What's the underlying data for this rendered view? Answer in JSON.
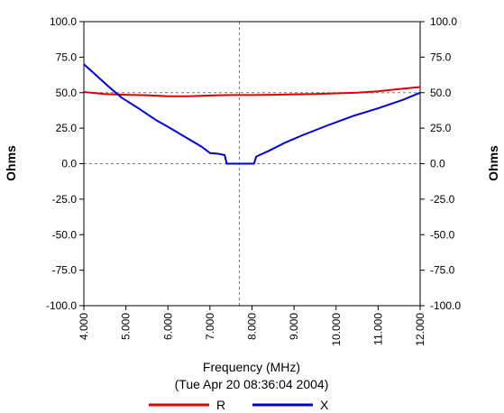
{
  "chart_data": {
    "type": "line",
    "title": "",
    "xlabel": "Frequency (MHz)",
    "timestamp": "(Tue Apr 20 08:36:04 2004)",
    "ylabel_left": "Ohms",
    "ylabel_right": "Ohms",
    "xlim": [
      4.0,
      12.0
    ],
    "ylim": [
      -100.0,
      100.0
    ],
    "x_ticks": [
      "4.000",
      "5.000",
      "6.000",
      "7.000",
      "8.000",
      "9.000",
      "10.000",
      "11.000",
      "12.000"
    ],
    "y_ticks": [
      "100.0",
      "75.0",
      "50.0",
      "25.0",
      "0.0",
      "-25.0",
      "-50.0",
      "-75.0",
      "-100.0"
    ],
    "grid": false,
    "reference_lines": {
      "y": [
        50.0,
        0.0
      ],
      "x": [
        7.7
      ]
    },
    "legend_placement": "bottom",
    "series": [
      {
        "name": "R",
        "color": "#dd0000",
        "x": [
          4.0,
          4.5,
          5.0,
          5.5,
          6.0,
          6.5,
          7.0,
          7.5,
          8.0,
          8.5,
          9.0,
          9.5,
          10.0,
          10.5,
          11.0,
          11.5,
          12.0
        ],
        "y": [
          50.5,
          49.0,
          48.5,
          48.2,
          47.5,
          47.5,
          48.0,
          48.3,
          48.3,
          48.5,
          48.8,
          49.0,
          49.5,
          50.0,
          51.0,
          52.5,
          54.0
        ]
      },
      {
        "name": "X",
        "color": "#0000cc",
        "x": [
          4.0,
          4.3,
          4.6,
          4.9,
          5.3,
          5.7,
          6.0,
          6.4,
          6.8,
          7.0,
          7.2,
          7.35,
          7.4,
          8.05,
          8.1,
          8.4,
          8.8,
          9.2,
          9.8,
          10.4,
          11.0,
          11.6,
          12.0
        ],
        "y": [
          70.0,
          62.0,
          54.0,
          46.5,
          39.0,
          31.0,
          26.0,
          19.0,
          12.0,
          7.5,
          7.0,
          6.0,
          0.0,
          0.0,
          5.0,
          9.0,
          15.0,
          20.0,
          27.0,
          33.5,
          39.0,
          45.0,
          50.0
        ]
      }
    ]
  }
}
